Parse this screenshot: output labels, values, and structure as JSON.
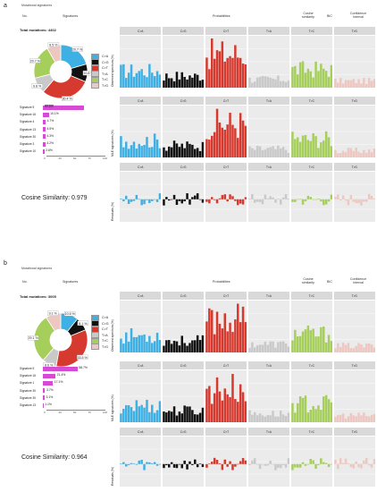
{
  "panels": [
    {
      "letter": "a",
      "title": "Mutational signatures",
      "headers": {
        "no": "No.",
        "signatures": "Signatures",
        "probabilities": "Probabilities",
        "cosine": "Cosine\nsimilarity",
        "bic": "BIC",
        "confidence": "Confidence\nInterval"
      },
      "total_mutations": "Total mutations: 4402",
      "cosine_similarity": "Cosine Similarity: 0.979",
      "ylabels": [
        "Observed spectrum (%)",
        "MLE signatures (%)",
        "Residuals (%)"
      ],
      "facets": [
        "C>A",
        "C>G",
        "C>T",
        "T>A",
        "T>C",
        "T>G"
      ]
    },
    {
      "letter": "b",
      "title": "Mutational signatures",
      "headers": {
        "no": "No.",
        "signatures": "Signatures",
        "probabilities": "Probabilities",
        "cosine": "Cosine\nsimilarity",
        "bic": "BIC",
        "confidence": "Confidence\nInterval"
      },
      "total_mutations": "Total mutations: 3005",
      "cosine_similarity": "Cosine Similarity: 0.964",
      "ylabels": [
        "Observed spectrum (%)",
        "MLE signatures (%)",
        "Residuals (%)"
      ],
      "facets": [
        "C>A",
        "C>G",
        "C>T",
        "T>A",
        "T>C",
        "T>G"
      ]
    }
  ],
  "chart_data": [
    {
      "type": "pie",
      "title": "Total mutations: 4402",
      "categories": [
        "C>A",
        "C>G",
        "C>T",
        "T>A",
        "T>C",
        "T>G"
      ],
      "values": [
        20.7,
        10.8,
        30.4,
        9.8,
        20.7,
        8.5
      ],
      "labels": [
        "20.7 %",
        "10.8 %",
        "30.4 %",
        "9.8 %",
        "20.7 %",
        "8.5 %"
      ],
      "colors": [
        "#3eb0e4",
        "#111111",
        "#d63a2f",
        "#c9c9c9",
        "#a5cf5a",
        "#edc7c0"
      ]
    },
    {
      "type": "bar",
      "title": "",
      "categories": [
        "Signature 5",
        "Signature 16",
        "Signature 4",
        "Signature 13",
        "Signature 30",
        "Signature 3",
        "Signature 10"
      ],
      "values": [
        69.6,
        10.1,
        4.7,
        4.5,
        4.3,
        4.2,
        2.6
      ],
      "labels": [
        "69.6%",
        "10.1%",
        "4.7%",
        "4.5%",
        "4.3%",
        "4.2%",
        "2.6%"
      ],
      "xticks": [
        "0",
        "25",
        "50",
        "75",
        "100"
      ],
      "xlim": [
        0,
        100
      ]
    },
    {
      "type": "pie",
      "title": "Total mutations: 3005",
      "categories": [
        "C>A",
        "C>G",
        "C>T",
        "T>A",
        "T>C",
        "T>G"
      ],
      "values": [
        10.6,
        8.1,
        33.5,
        8.6,
        29.1,
        9.1
      ],
      "labels": [
        "10.6 %",
        "8.1 %",
        "33.5 %",
        "8.6 %",
        "29.1 %",
        "9.1 %"
      ],
      "colors": [
        "#3eb0e4",
        "#111111",
        "#d63a2f",
        "#c9c9c9",
        "#a5cf5a",
        "#edc7c0"
      ]
    },
    {
      "type": "bar",
      "title": "",
      "categories": [
        "Signature 5",
        "Signature 16",
        "Signature 1",
        "Signature 30",
        "Signature 30",
        "Signature 13"
      ],
      "values": [
        58.7,
        21.4,
        17.1,
        3.7,
        3.1,
        1.1
      ],
      "labels": [
        "58.7%",
        "21.4%",
        "17.1%",
        "3.7%",
        "3.1%",
        "1.1%"
      ],
      "xticks": [
        "0",
        "25",
        "50",
        "75",
        "100"
      ],
      "xlim": [
        0,
        100
      ]
    }
  ]
}
